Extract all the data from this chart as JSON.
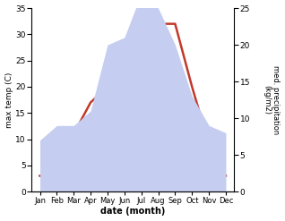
{
  "months": [
    "Jan",
    "Feb",
    "Mar",
    "Apr",
    "May",
    "Jun",
    "Jul",
    "Aug",
    "Sep",
    "Oct",
    "Nov",
    "Dec"
  ],
  "temperature": [
    3,
    4,
    11,
    17,
    20,
    28,
    34,
    32,
    32,
    20,
    9,
    3
  ],
  "precipitation": [
    7,
    9,
    9,
    11,
    20,
    21,
    27,
    25,
    20,
    13,
    9,
    8
  ],
  "temp_color": "#c0392b",
  "precip_fill_color": "#c5cdf0",
  "temp_ylim": [
    0,
    35
  ],
  "precip_ylim": [
    0,
    25
  ],
  "temp_yticks": [
    0,
    5,
    10,
    15,
    20,
    25,
    30,
    35
  ],
  "precip_yticks": [
    0,
    5,
    10,
    15,
    20,
    25
  ],
  "xlabel": "date (month)",
  "ylabel_left": "max temp (C)",
  "ylabel_right": "med. precipitation\n(kg/m2)",
  "fig_width": 3.18,
  "fig_height": 2.47,
  "dpi": 100
}
